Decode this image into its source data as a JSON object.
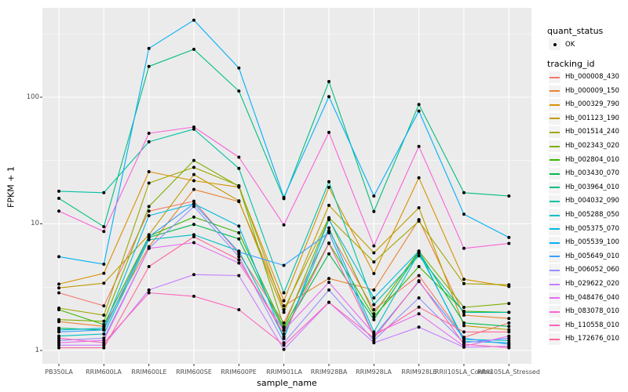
{
  "figure": {
    "y_axis_title": "FPKM + 1",
    "x_axis_title": "sample_name",
    "legend": {
      "quant_status_title": "quant_status",
      "quant_status_items": [
        {
          "label": "OK",
          "marker": "black-point"
        }
      ],
      "tracking_id_title": "tracking_id"
    },
    "colors": {
      "panel_background": "#EBEBEB",
      "gridline": "#FFFFFF",
      "tick_mark": "#333333",
      "tick_label": "#4D4D4D",
      "point": "#000000",
      "legend_key_background": "#F3F3F3"
    }
  },
  "chart_data": {
    "type": "line",
    "title": "",
    "xlabel": "sample_name",
    "ylabel": "FPKM + 1",
    "yscale": "log10",
    "ylim": [
      0.75,
      510
    ],
    "grid": "on",
    "legend_position": "right",
    "y_major_ticks": [
      1,
      10,
      100
    ],
    "y_major_tick_labels": [
      "1",
      "10",
      "100"
    ],
    "y_minor_ticks": [
      3.162,
      31.62,
      316.2
    ],
    "categories": [
      "PB350LA",
      "RRIM600LA",
      "RRIM600LE",
      "RRIM600SE",
      "RRIM600PE",
      "RRIM901LA",
      "RRIM928BA",
      "RRIM928LA",
      "RRIM928LE",
      "RRII105LA_Control",
      "RRII105LA_Stressed"
    ],
    "point_marker": "filled-black-circle",
    "quant_status_all_points": "OK",
    "series": [
      {
        "name": "Hb_000008_430",
        "color": "#F8766D",
        "values": [
          2.85,
          2.25,
          12.6,
          15.1,
          5.8,
          1.65,
          8.8,
          2.1,
          3.9,
          1.27,
          1.65
        ]
      },
      {
        "name": "Hb_000009_150",
        "color": "#EA8331",
        "values": [
          1.69,
          1.55,
          6.6,
          18.7,
          15.0,
          2.25,
          3.7,
          3.0,
          10.8,
          1.9,
          1.79
        ]
      },
      {
        "name": "Hb_000329_790",
        "color": "#D89000",
        "values": [
          3.34,
          4.07,
          25.8,
          21.9,
          19.5,
          2.47,
          19.4,
          4.05,
          23.1,
          3.65,
          3.2
        ]
      },
      {
        "name": "Hb_001123_190",
        "color": "#C09B00",
        "values": [
          3.12,
          3.4,
          8.2,
          24.5,
          15.2,
          2.0,
          14.0,
          5.9,
          13.4,
          1.57,
          1.46
        ]
      },
      {
        "name": "Hb_001514_240",
        "color": "#A3A500",
        "values": [
          2.16,
          1.9,
          21.0,
          27.9,
          20.0,
          2.1,
          11.2,
          5.0,
          10.5,
          3.37,
          3.3
        ]
      },
      {
        "name": "Hb_002343_020",
        "color": "#7CAE00",
        "values": [
          1.75,
          1.7,
          13.7,
          31.7,
          19.8,
          1.54,
          11.0,
          1.95,
          6.1,
          2.19,
          2.35
        ]
      },
      {
        "name": "Hb_002804_010",
        "color": "#39B600",
        "values": [
          2.1,
          1.6,
          8.0,
          11.3,
          8.5,
          1.5,
          7.05,
          1.85,
          4.6,
          2.04,
          2.0
        ]
      },
      {
        "name": "Hb_003430_070",
        "color": "#00BB4E",
        "values": [
          1.5,
          1.45,
          7.8,
          9.9,
          7.6,
          1.44,
          5.8,
          1.75,
          6.0,
          1.65,
          1.55
        ]
      },
      {
        "name": "Hb_003964_010",
        "color": "#00BF7D",
        "values": [
          15.9,
          9.5,
          175.0,
          239.0,
          112.0,
          15.8,
          133.0,
          12.5,
          87.7,
          17.6,
          16.6
        ]
      },
      {
        "name": "Hb_004032_090",
        "color": "#00C1A3",
        "values": [
          18.1,
          17.6,
          44.4,
          56.0,
          27.4,
          2.85,
          21.5,
          2.3,
          5.6,
          2.0,
          2.0
        ]
      },
      {
        "name": "Hb_005288_050",
        "color": "#00BFC4",
        "values": [
          1.3,
          1.35,
          7.5,
          8.2,
          6.1,
          1.28,
          9.3,
          1.4,
          5.9,
          1.22,
          1.2
        ]
      },
      {
        "name": "Hb_005375_070",
        "color": "#00BAE0",
        "values": [
          1.45,
          1.5,
          11.6,
          14.4,
          9.6,
          1.24,
          10.8,
          2.6,
          6.1,
          1.18,
          1.15
        ]
      },
      {
        "name": "Hb_005539_100",
        "color": "#00B0F6",
        "values": [
          5.5,
          4.8,
          243.0,
          406.0,
          170.0,
          16.2,
          101.0,
          16.6,
          77.8,
          11.9,
          7.8
        ]
      },
      {
        "name": "Hb_005649_010",
        "color": "#35A2FF",
        "values": [
          1.4,
          1.45,
          7.9,
          14.4,
          6.0,
          4.7,
          8.5,
          1.3,
          3.5,
          1.25,
          1.12
        ]
      },
      {
        "name": "Hb_006052_060",
        "color": "#9590FF",
        "values": [
          1.2,
          1.25,
          6.4,
          13.7,
          5.5,
          1.15,
          3.0,
          1.2,
          2.6,
          1.15,
          1.25
        ]
      },
      {
        "name": "Hb_029622_020",
        "color": "#C77CFF",
        "values": [
          1.1,
          1.1,
          3.0,
          3.97,
          3.9,
          1.02,
          2.4,
          1.15,
          1.53,
          1.06,
          1.08
        ]
      },
      {
        "name": "Hb_048476_040",
        "color": "#E76BF3",
        "values": [
          1.15,
          1.2,
          6.4,
          7.1,
          4.9,
          1.44,
          3.45,
          1.35,
          1.95,
          1.08,
          1.3
        ]
      },
      {
        "name": "Hb_083078_010",
        "color": "#FA62DB",
        "values": [
          12.6,
          8.7,
          51.9,
          58.2,
          33.6,
          9.8,
          52.7,
          6.7,
          40.9,
          6.4,
          7.0
        ]
      },
      {
        "name": "Hb_110558_010",
        "color": "#FF62BC",
        "values": [
          1.25,
          1.15,
          2.85,
          2.68,
          2.1,
          1.1,
          2.4,
          1.25,
          3.55,
          1.12,
          1.05
        ]
      },
      {
        "name": "Hb_172676_010",
        "color": "#FF6A98",
        "values": [
          1.05,
          1.05,
          4.6,
          7.9,
          5.2,
          1.35,
          7.0,
          1.3,
          2.2,
          1.4,
          1.4
        ]
      }
    ]
  }
}
